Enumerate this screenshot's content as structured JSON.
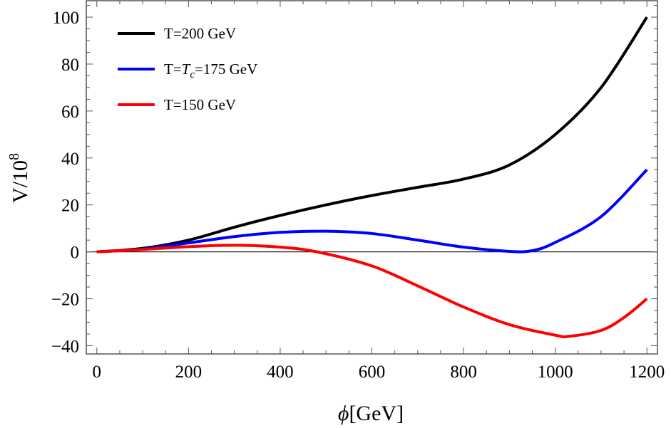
{
  "chart_data": {
    "type": "line",
    "title": "",
    "xlabel": "ϕ[GeV]",
    "xlabel_parts": {
      "symbol": "ϕ",
      "rest": "[GeV]"
    },
    "ylabel": "V/10^8",
    "ylabel_parts": {
      "base": "V/10",
      "exp": "8"
    },
    "xlim": [
      -23,
      1223
    ],
    "ylim": [
      -43.5,
      107
    ],
    "xticks": [
      0,
      200,
      400,
      600,
      800,
      1000,
      1200
    ],
    "xtick_labels": [
      "0",
      "200",
      "400",
      "600",
      "800",
      "1000",
      "1200"
    ],
    "yticks": [
      -40,
      -20,
      0,
      20,
      40,
      60,
      80,
      100
    ],
    "ytick_labels": [
      "−40",
      "−20",
      "0",
      "20",
      "40",
      "60",
      "80",
      "100"
    ],
    "grid": false,
    "zero_line": true,
    "legend_placement": "top-left",
    "series": [
      {
        "name": "T=200 GeV",
        "legend": {
          "pre": "T=",
          "italic": "",
          "sub": "",
          "post": "200 GeV"
        },
        "color": "#000000",
        "x": [
          0,
          100,
          200,
          300,
          400,
          500,
          600,
          700,
          800,
          900,
          1000,
          1100,
          1200
        ],
        "y": [
          0,
          1.5,
          5,
          10.5,
          15.5,
          20,
          24,
          27.5,
          31,
          37,
          50,
          70,
          100
        ]
      },
      {
        "name": "T=Tc=175 GeV",
        "legend": {
          "pre": "T=",
          "italic": "T",
          "sub": "c",
          "post": "=175 GeV"
        },
        "color": "#0000ff",
        "x": [
          0,
          100,
          200,
          300,
          400,
          500,
          600,
          700,
          800,
          900,
          950,
          1000,
          1100,
          1200
        ],
        "y": [
          0,
          1.2,
          3.8,
          6.5,
          8.3,
          8.8,
          7.8,
          5,
          2,
          0.2,
          0.5,
          4,
          15,
          35
        ]
      },
      {
        "name": "T=150 GeV",
        "legend": {
          "pre": "T=",
          "italic": "",
          "sub": "",
          "post": "150 GeV"
        },
        "color": "#ff0000",
        "x": [
          0,
          100,
          200,
          300,
          400,
          480,
          600,
          700,
          800,
          900,
          1000,
          1030,
          1100,
          1150,
          1200
        ],
        "y": [
          0,
          1,
          2.2,
          2.8,
          2,
          0,
          -6,
          -14.5,
          -23.5,
          -31,
          -35.5,
          -36,
          -33.5,
          -28,
          -20
        ]
      }
    ]
  }
}
